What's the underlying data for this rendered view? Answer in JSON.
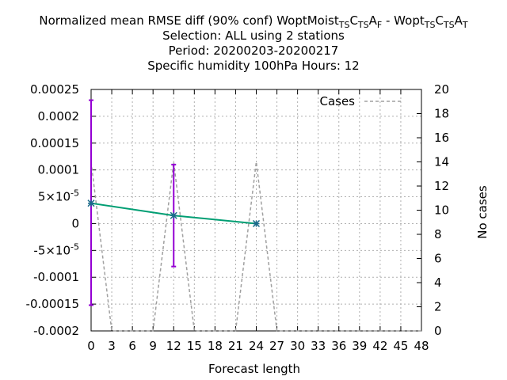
{
  "chart_data": {
    "type": "line",
    "title_lines": [
      {
        "segments": [
          {
            "t": "Normalized mean RMSE diff (90% conf) WoptMoist"
          },
          {
            "t": "T",
            "sub": true
          },
          {
            "t": "S",
            "sub": true
          },
          {
            "t": "C"
          },
          {
            "t": "T",
            "sub": true
          },
          {
            "t": "S",
            "sub": true
          },
          {
            "t": "A"
          },
          {
            "t": "F",
            "sub": true
          },
          {
            "t": " - Wopt"
          },
          {
            "t": "T",
            "sub": true
          },
          {
            "t": "S",
            "sub": true
          },
          {
            "t": "C"
          },
          {
            "t": "T",
            "sub": true
          },
          {
            "t": "S",
            "sub": true
          },
          {
            "t": "A"
          },
          {
            "t": "T",
            "sub": true
          }
        ]
      },
      {
        "segments": [
          {
            "t": "Selection: ALL using     2 stations"
          }
        ]
      },
      {
        "segments": [
          {
            "t": "Period: 20200203-20200217"
          }
        ]
      },
      {
        "segments": [
          {
            "t": "Specific humidity 100hPa   Hours:  12"
          }
        ]
      }
    ],
    "xlabel": "Forecast length",
    "ylabel_right": "No cases",
    "xlim": [
      0,
      48
    ],
    "ylim": [
      -0.0002,
      0.00025
    ],
    "y2lim": [
      0,
      20
    ],
    "x_ticks": [
      "0",
      "3",
      "6",
      "9",
      "12",
      "15",
      "18",
      "21",
      "24",
      "27",
      "30",
      "33",
      "36",
      "39",
      "42",
      "45",
      "48"
    ],
    "y_ticks": [
      {
        "v": 0.00025,
        "base": "0.00025"
      },
      {
        "v": 0.0002,
        "base": "0.0002"
      },
      {
        "v": 0.00015,
        "base": "0.00015"
      },
      {
        "v": 0.0001,
        "base": "0.0001"
      },
      {
        "v": 5e-05,
        "base": "5×10",
        "exp": "-5"
      },
      {
        "v": 0,
        "base": "0"
      },
      {
        "v": -5e-05,
        "base": "-5×10",
        "exp": "-5"
      },
      {
        "v": -0.0001,
        "base": "-0.0001"
      },
      {
        "v": -0.00015,
        "base": "-0.00015"
      },
      {
        "v": -0.0002,
        "base": "-0.0002"
      }
    ],
    "y2_ticks": [
      "0",
      "2",
      "4",
      "6",
      "8",
      "10",
      "12",
      "14",
      "16",
      "18",
      "20"
    ],
    "grid": true,
    "legend": {
      "position": "top-right",
      "entries": [
        "Cases"
      ]
    },
    "series": [
      {
        "kind": "mean",
        "color": "#009e73",
        "x": [
          0,
          12,
          24
        ],
        "y": [
          3.8e-05,
          1.5e-05,
          0.0
        ]
      },
      {
        "kind": "errorbars",
        "color": "#9400d3",
        "x": [
          0,
          12,
          24
        ],
        "low": [
          -0.000152,
          -8e-05,
          0.0
        ],
        "high": [
          0.00023,
          0.00011,
          0.0
        ]
      },
      {
        "kind": "cases",
        "name": "Cases",
        "color": "#a0a0a0",
        "axis": "right",
        "x": [
          0,
          3,
          6,
          9,
          12,
          15,
          18,
          21,
          24,
          27,
          30,
          33,
          36,
          39,
          42,
          45,
          48
        ],
        "y": [
          14,
          0,
          0,
          0,
          14,
          0,
          0,
          0,
          14,
          0,
          0,
          0,
          0,
          0,
          0,
          0,
          0
        ]
      }
    ]
  }
}
